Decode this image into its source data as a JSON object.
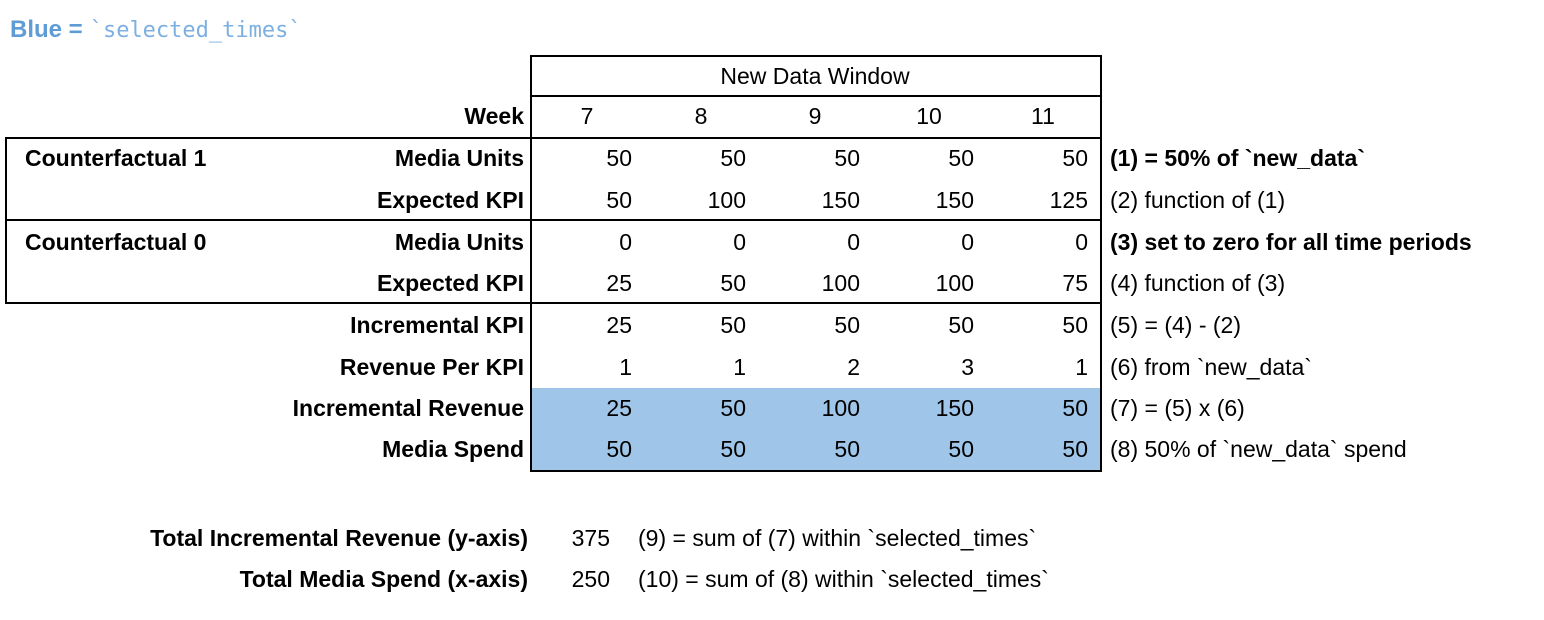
{
  "legend": {
    "prefix": "Blue =",
    "code": "`selected_times`"
  },
  "colors": {
    "highlight": "#9fc5e8",
    "legend_bold": "#5f9cd6",
    "legend_code": "#7dafe1"
  },
  "chart_data": {
    "type": "table",
    "title": "New Data Window",
    "columns": [
      "Week",
      "7",
      "8",
      "9",
      "10",
      "11"
    ],
    "rows": [
      {
        "group": "Counterfactual 1",
        "label": "Media Units",
        "values": [
          50,
          50,
          50,
          50,
          50
        ],
        "note": "(1) = 50% of `new_data`",
        "note_bold": true,
        "highlighted": false
      },
      {
        "group": "Counterfactual 1",
        "label": "Expected KPI",
        "values": [
          50,
          100,
          150,
          150,
          125
        ],
        "note": "(2) function of (1)",
        "note_bold": false,
        "highlighted": false
      },
      {
        "group": "Counterfactual 0",
        "label": "Media Units",
        "values": [
          0,
          0,
          0,
          0,
          0
        ],
        "note": "(3) set to zero for all time periods",
        "note_bold": true,
        "highlighted": false
      },
      {
        "group": "Counterfactual 0",
        "label": "Expected KPI",
        "values": [
          25,
          50,
          100,
          100,
          75
        ],
        "note": "(4) function of (3)",
        "note_bold": false,
        "highlighted": false
      },
      {
        "group": "",
        "label": "Incremental KPI",
        "values": [
          25,
          50,
          50,
          50,
          50
        ],
        "note": "(5) = (4) - (2)",
        "note_bold": false,
        "highlighted": false
      },
      {
        "group": "",
        "label": "Revenue Per KPI",
        "values": [
          1,
          1,
          2,
          3,
          1
        ],
        "note": "(6) from `new_data`",
        "note_bold": false,
        "highlighted": false
      },
      {
        "group": "",
        "label": "Incremental Revenue",
        "values": [
          25,
          50,
          100,
          150,
          50
        ],
        "note": "(7) = (5) x (6)",
        "note_bold": false,
        "highlighted": true
      },
      {
        "group": "",
        "label": "Media Spend",
        "values": [
          50,
          50,
          50,
          50,
          50
        ],
        "note": "(8) 50% of `new_data` spend",
        "note_bold": false,
        "highlighted": true
      }
    ],
    "totals": [
      {
        "label": "Total Incremental Revenue (y-axis)",
        "value": 375,
        "note": "(9) = sum of (7) within `selected_times`"
      },
      {
        "label": "Total Media Spend (x-axis)",
        "value": 250,
        "note": "(10) = sum of (8) within `selected_times`"
      }
    ]
  }
}
